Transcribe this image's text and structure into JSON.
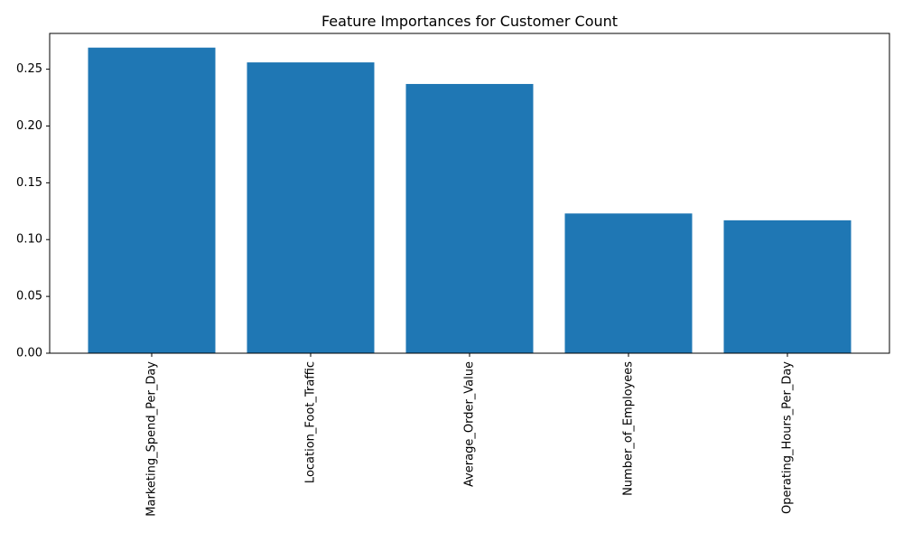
{
  "chart_data": {
    "type": "bar",
    "title": "Feature Importances for Customer Count",
    "xlabel": "",
    "ylabel": "",
    "categories": [
      "Marketing_Spend_Per_Day",
      "Location_Foot_Traffic",
      "Average_Order_Value",
      "Number_of_Employees",
      "Operating_Hours_Per_Day"
    ],
    "values": [
      0.269,
      0.256,
      0.237,
      0.123,
      0.117
    ],
    "ylim": [
      0,
      0.2815
    ],
    "yticks": [
      0.0,
      0.05,
      0.1,
      0.15,
      0.2,
      0.25
    ],
    "ytick_labels": [
      "0.00",
      "0.05",
      "0.10",
      "0.15",
      "0.20",
      "0.25"
    ],
    "grid": false,
    "bar_color": "#1f77b4"
  }
}
